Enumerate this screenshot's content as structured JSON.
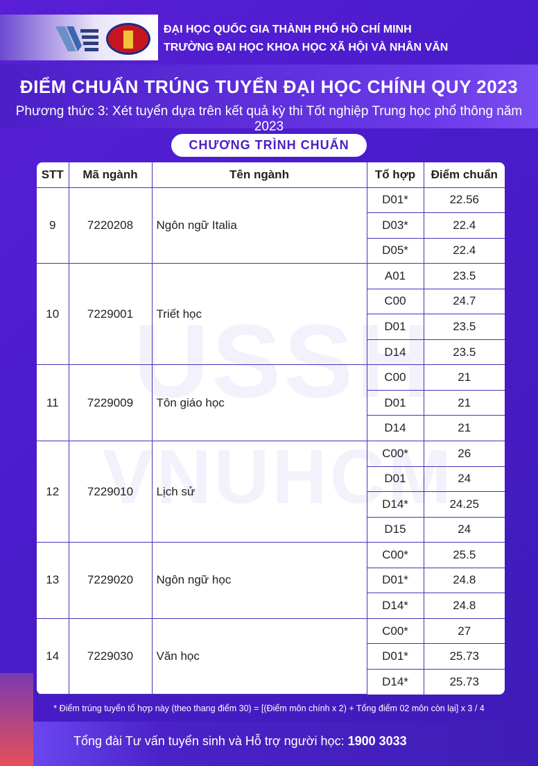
{
  "header": {
    "line1": "ĐẠI HỌC QUỐC GIA THÀNH PHỐ HỒ CHÍ MINH",
    "line2": "TRƯỜNG ĐẠI HỌC KHOA HỌC XÃ HỘI VÀ NHÂN VĂN",
    "logo_text": "USSH"
  },
  "title": "ĐIỂM CHUẨN TRÚNG TUYỂN ĐẠI HỌC CHÍNH QUY 2023",
  "subtitle": "Phương thức 3: Xét tuyển dựa trên kết quả kỳ thi Tốt nghiệp Trung học phổ thông năm 2023",
  "program": "CHƯƠNG TRÌNH CHUẨN",
  "watermark": [
    "USSH",
    "VNUHCM"
  ],
  "table": {
    "columns": [
      "STT",
      "Mã ngành",
      "Tên ngành",
      "Tổ hợp",
      "Điểm chuẩn"
    ],
    "groups": [
      {
        "stt": "9",
        "code": "7220208",
        "name": "Ngôn ngữ Italia",
        "rows": [
          [
            "D01*",
            "22.56"
          ],
          [
            "D03*",
            "22.4"
          ],
          [
            "D05*",
            "22.4"
          ]
        ]
      },
      {
        "stt": "10",
        "code": "7229001",
        "name": "Triết học",
        "rows": [
          [
            "A01",
            "23.5"
          ],
          [
            "C00",
            "24.7"
          ],
          [
            "D01",
            "23.5"
          ],
          [
            "D14",
            "23.5"
          ]
        ]
      },
      {
        "stt": "11",
        "code": "7229009",
        "name": "Tôn giáo học",
        "rows": [
          [
            "C00",
            "21"
          ],
          [
            "D01",
            "21"
          ],
          [
            "D14",
            "21"
          ]
        ]
      },
      {
        "stt": "12",
        "code": "7229010",
        "name": "Lịch sử",
        "rows": [
          [
            "C00*",
            "26"
          ],
          [
            "D01",
            "24"
          ],
          [
            "D14*",
            "24.25"
          ],
          [
            "D15",
            "24"
          ]
        ]
      },
      {
        "stt": "13",
        "code": "7229020",
        "name": "Ngôn ngữ học",
        "rows": [
          [
            "C00*",
            "25.5"
          ],
          [
            "D01*",
            "24.8"
          ],
          [
            "D14*",
            "24.8"
          ]
        ]
      },
      {
        "stt": "14",
        "code": "7229030",
        "name": "Văn học",
        "rows": [
          [
            "C00*",
            "27"
          ],
          [
            "D01*",
            "25.73"
          ],
          [
            "D14*",
            "25.73"
          ]
        ]
      }
    ]
  },
  "note": "* Điểm trúng tuyển tổ hợp này (theo thang điểm 30) = [(Điểm môn chính x 2) + Tổng điểm 02 môn còn lại] x 3 / 4",
  "footer": {
    "label": "Tổng đài Tư vấn tuyển sinh và Hỗ trợ người học: ",
    "phone": "1900 3033"
  }
}
